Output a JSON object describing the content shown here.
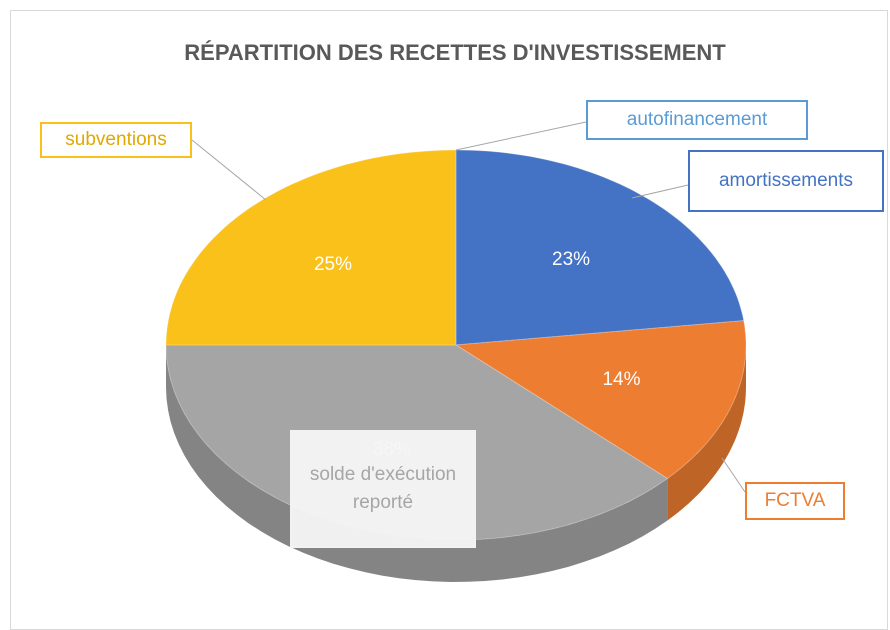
{
  "chart_data": {
    "type": "pie",
    "title": "RÉPARTITION DES RECETTES D'INVESTISSEMENT",
    "categories": [
      "autofinancement",
      "amortissements",
      "FCTVA",
      "solde d'exécution reporté",
      "subventions"
    ],
    "values": [
      0,
      23,
      14,
      38,
      25
    ],
    "value_labels": [
      null,
      "23%",
      "14%",
      "38%",
      "25%"
    ],
    "colors": [
      "#5b9bd5",
      "#4472c4",
      "#ed7d31",
      "#a5a5a5",
      "#fbc11b"
    ]
  }
}
